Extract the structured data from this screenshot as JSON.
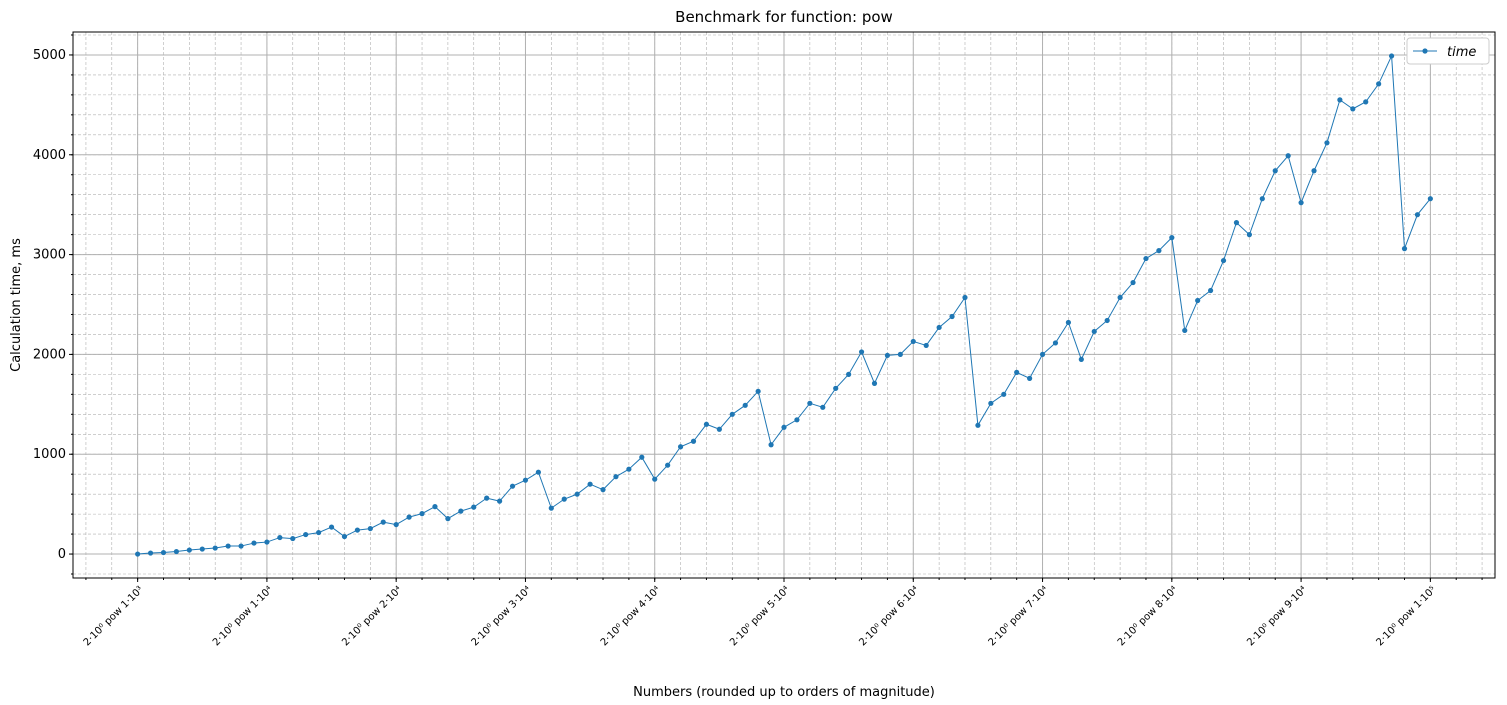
{
  "chart_data": {
    "type": "line",
    "title": "Benchmark for function: pow",
    "x_label": "Numbers (rounded up to orders of magnitude)",
    "y_label": "Calculation time, ms",
    "categories": [
      "2·10⁰ pow 1·10³",
      null,
      null,
      null,
      null,
      null,
      null,
      null,
      null,
      null,
      "2·10⁰ pow 1·10⁴",
      null,
      null,
      null,
      null,
      null,
      null,
      null,
      null,
      null,
      "2·10⁰ pow 2·10⁴",
      null,
      null,
      null,
      null,
      null,
      null,
      null,
      null,
      null,
      "2·10⁰ pow 3·10⁴",
      null,
      null,
      null,
      null,
      null,
      null,
      null,
      null,
      null,
      "2·10⁰ pow 4·10⁴",
      null,
      null,
      null,
      null,
      null,
      null,
      null,
      null,
      null,
      "2·10⁰ pow 5·10⁴",
      null,
      null,
      null,
      null,
      null,
      null,
      null,
      null,
      null,
      "2·10⁰ pow 6·10⁴",
      null,
      null,
      null,
      null,
      null,
      null,
      null,
      null,
      null,
      "2·10⁰ pow 7·10⁴",
      null,
      null,
      null,
      null,
      null,
      null,
      null,
      null,
      null,
      "2·10⁰ pow 8·10⁴",
      null,
      null,
      null,
      null,
      null,
      null,
      null,
      null,
      null,
      "2·10⁰ pow 9·10⁴",
      null,
      null,
      null,
      null,
      null,
      null,
      null,
      null,
      null,
      "2·10⁰ pow 1·10⁵"
    ],
    "series": [
      {
        "name": "time",
        "color": "#1f77b4",
        "values": [
          0,
          10,
          15,
          25,
          40,
          50,
          60,
          80,
          80,
          110,
          120,
          165,
          155,
          195,
          215,
          270,
          175,
          240,
          255,
          320,
          295,
          370,
          405,
          475,
          355,
          430,
          470,
          560,
          530,
          680,
          740,
          820,
          460,
          550,
          600,
          700,
          645,
          775,
          850,
          970,
          750,
          890,
          1075,
          1130,
          1300,
          1250,
          1400,
          1490,
          1630,
          1095,
          1270,
          1345,
          1510,
          1470,
          1660,
          1800,
          2025,
          1710,
          1990,
          2000,
          2130,
          2090,
          2270,
          2380,
          2570,
          1290,
          1510,
          1600,
          1820,
          1760,
          2000,
          2115,
          2320,
          1950,
          2230,
          2340,
          2570,
          2720,
          2960,
          3040,
          3170,
          2240,
          2540,
          2640,
          2940,
          3320,
          3200,
          3560,
          3840,
          3990,
          3520,
          3840,
          4120,
          4550,
          4460,
          4530,
          4710,
          4990,
          3060,
          3400,
          3560
        ]
      }
    ],
    "ylim": [
      -240,
      5230
    ],
    "yticks": [
      0,
      1000,
      2000,
      3000,
      4000,
      5000
    ],
    "grid": true,
    "legend": "upper right"
  }
}
